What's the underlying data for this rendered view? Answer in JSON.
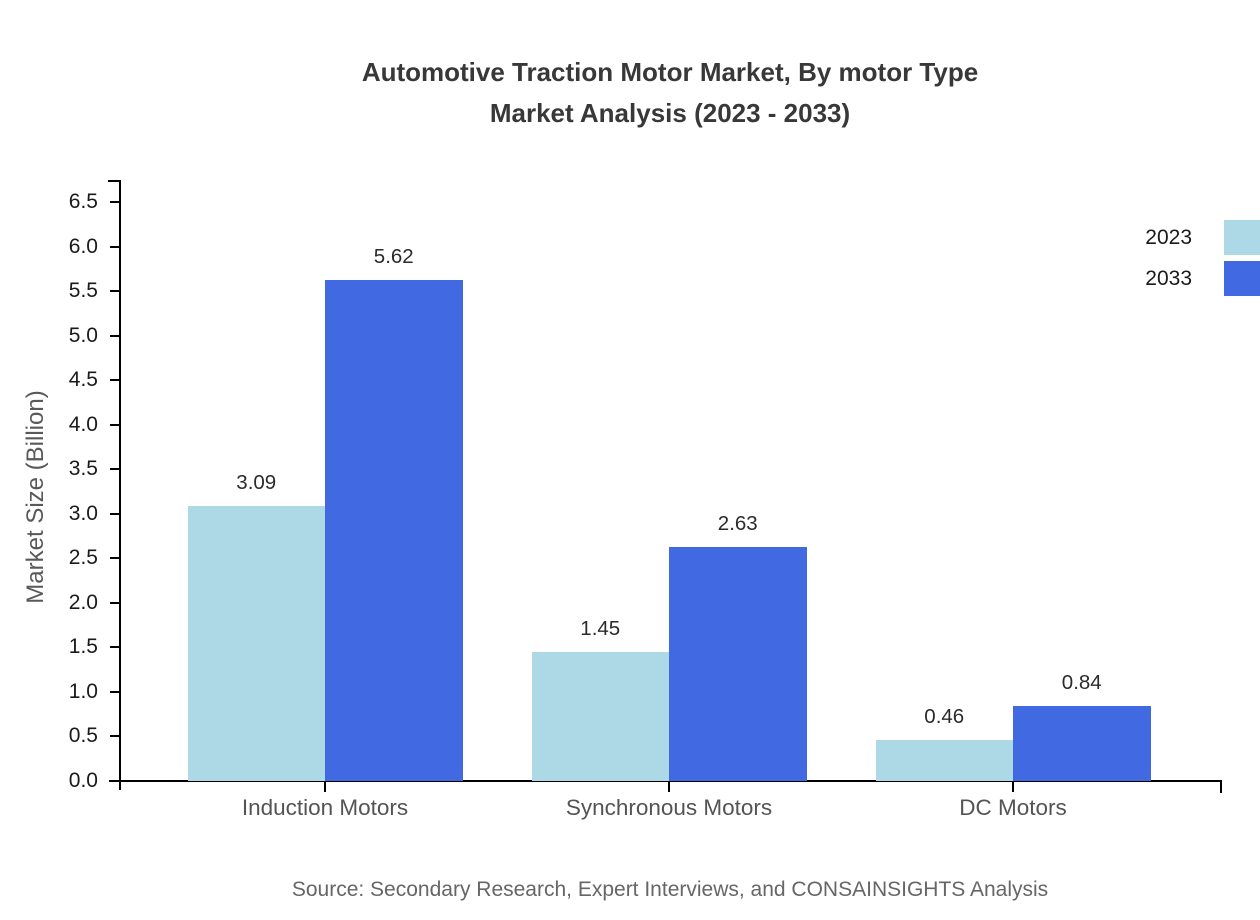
{
  "title": {
    "line1": "Automotive Traction Motor Market, By motor Type",
    "line2": "Market Analysis (2023 - 2033)"
  },
  "source": "Source: Secondary Research, Expert Interviews, and CONSAINSIGHTS Analysis",
  "colors": {
    "series_2023": "#ADD8E6",
    "series_2033": "#4169E1",
    "axis": "#000000",
    "title_text": "#383838",
    "ytick_text": "#1a1a1a",
    "category_text": "#545454",
    "muted_text": "#666666"
  },
  "chart_data": {
    "type": "bar",
    "title": "Automotive Traction Motor Market, By motor Type — Market Analysis (2023 - 2033)",
    "categories": [
      "Induction Motors",
      "Synchronous Motors",
      "DC Motors"
    ],
    "series": [
      {
        "name": "2023",
        "color": "#ADD8E6",
        "values": [
          3.09,
          1.45,
          0.46
        ],
        "value_labels": [
          "3.09",
          "1.45",
          "0.46"
        ]
      },
      {
        "name": "2033",
        "color": "#4169E1",
        "values": [
          5.62,
          2.63,
          0.84
        ],
        "value_labels": [
          "5.62",
          "2.63",
          "0.84"
        ]
      }
    ],
    "xlabel": "",
    "ylabel": "Market Size (Billion)",
    "ylim": [
      0,
      6.5
    ],
    "yticks": [
      "0.0",
      "0.5",
      "1.0",
      "1.5",
      "2.0",
      "2.5",
      "3.0",
      "3.5",
      "4.0",
      "4.5",
      "5.0",
      "5.5",
      "6.0",
      "6.5"
    ],
    "grid": false,
    "legend_position": "upper right"
  }
}
